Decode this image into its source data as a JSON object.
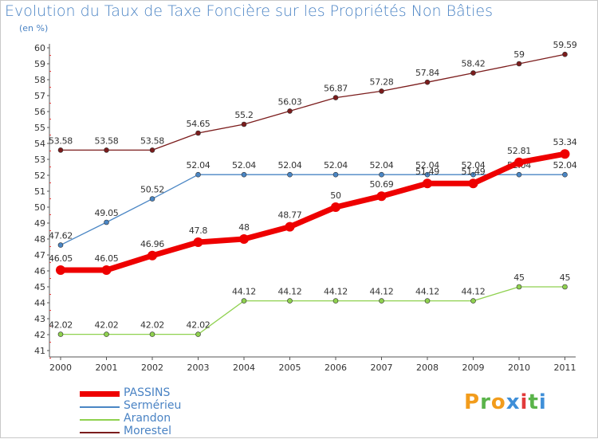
{
  "header": {
    "title": "Evolution du Taux de Taxe Foncière sur les Propriétés Non Bâties",
    "unit": "(en %)"
  },
  "logo": {
    "letters": [
      "P",
      "r",
      "o",
      "x",
      "i",
      "t",
      "i"
    ],
    "colors": [
      "#f29c1c",
      "#5ab44a",
      "#f29c1c",
      "#3f8fd8",
      "#e23b3b",
      "#5ab44a",
      "#3f8fd8"
    ]
  },
  "chart_data": {
    "type": "line",
    "x": [
      "2000",
      "2001",
      "2002",
      "2003",
      "2004",
      "2005",
      "2006",
      "2007",
      "2008",
      "2009",
      "2010",
      "2011"
    ],
    "ylim": [
      41,
      60
    ],
    "yticks": [
      "41",
      "42",
      "43",
      "44",
      "45",
      "46",
      "47",
      "48",
      "49",
      "50",
      "51",
      "52",
      "53",
      "54",
      "55",
      "56",
      "57",
      "58",
      "59",
      "60"
    ],
    "grid": false,
    "legend_position": "bottom-left",
    "series": [
      {
        "name": "Morestel",
        "color": "#7b1c1c",
        "values": [
          53.58,
          53.58,
          53.58,
          54.65,
          55.2,
          56.03,
          56.87,
          57.28,
          57.84,
          58.42,
          59,
          59.59
        ],
        "labels": [
          "53.58",
          "53.58",
          "53.58",
          "54.65",
          "55.2",
          "56.03",
          "56.87",
          "57.28",
          "57.84",
          "58.42",
          "59",
          "59.59"
        ]
      },
      {
        "name": "Sermérieu",
        "color": "#4a86c4",
        "values": [
          47.62,
          49.05,
          50.52,
          52.04,
          52.04,
          52.04,
          52.04,
          52.04,
          52.04,
          52.04,
          52.04,
          52.04
        ],
        "labels": [
          "47.62",
          "49.05",
          "50.52",
          "52.04",
          "52.04",
          "52.04",
          "52.04",
          "52.04",
          "52.04",
          "52.04",
          "52.04",
          "52.04"
        ]
      },
      {
        "name": "Arandon",
        "color": "#8fd14f",
        "values": [
          42.02,
          42.02,
          42.02,
          42.02,
          44.12,
          44.12,
          44.12,
          44.12,
          44.12,
          44.12,
          45,
          45
        ],
        "labels": [
          "42.02",
          "42.02",
          "42.02",
          "42.02",
          "44.12",
          "44.12",
          "44.12",
          "44.12",
          "44.12",
          "44.12",
          "45",
          "45"
        ]
      },
      {
        "name": "PASSINS",
        "color": "#ee0000",
        "values": [
          46.05,
          46.05,
          46.96,
          47.8,
          48,
          48.77,
          50,
          50.69,
          51.49,
          51.49,
          52.81,
          53.34
        ],
        "labels": [
          "46.05",
          "46.05",
          "46.96",
          "47.8",
          "48",
          "48.77",
          "50",
          "50.69",
          "51.49",
          "51.49",
          "52.81",
          "53.34"
        ]
      }
    ],
    "legend": [
      {
        "name": "PASSINS",
        "color": "#ee0000",
        "thick": true
      },
      {
        "name": "Sermérieu",
        "color": "#4a86c4",
        "thick": false
      },
      {
        "name": "Arandon",
        "color": "#8fd14f",
        "thick": false
      },
      {
        "name": "Morestel",
        "color": "#7b1c1c",
        "thick": false
      }
    ]
  }
}
